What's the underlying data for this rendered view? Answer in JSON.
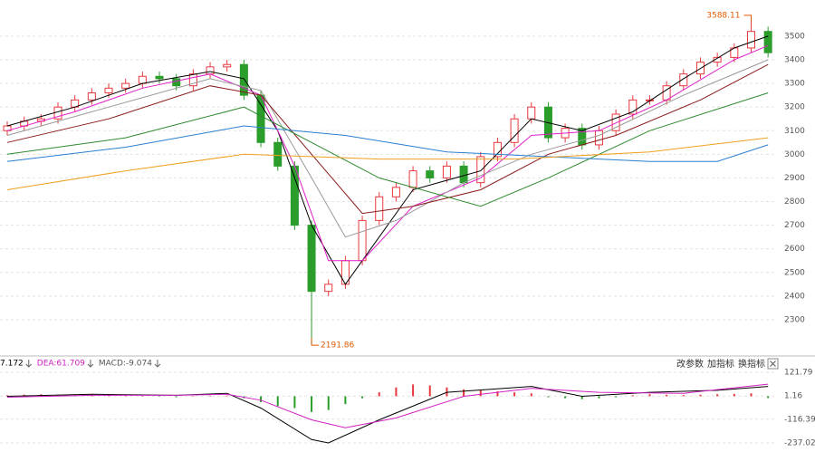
{
  "chart_data": [
    {
      "type": "candlestick",
      "open": [
        3100,
        3120,
        3140,
        3150,
        3200,
        3230,
        3260,
        3280,
        3300,
        3330,
        3320,
        3290,
        3340,
        3370,
        3380,
        3250,
        3050,
        2950,
        2700,
        2420,
        2450,
        2550,
        2720,
        2820,
        2860,
        2930,
        2900,
        2950,
        2880,
        2990,
        3050,
        3150,
        3200,
        3070,
        3110,
        3040,
        3100,
        3170,
        3230,
        3230,
        3290,
        3340,
        3390,
        3410,
        3450,
        3520
      ],
      "high": [
        3140,
        3160,
        3170,
        3220,
        3250,
        3280,
        3300,
        3320,
        3350,
        3350,
        3340,
        3360,
        3390,
        3400,
        3400,
        3270,
        3070,
        2970,
        2720,
        2470,
        2570,
        2740,
        2840,
        2880,
        2950,
        2950,
        2970,
        2970,
        3010,
        3070,
        3170,
        3220,
        3220,
        3130,
        3130,
        3120,
        3190,
        3250,
        3250,
        3310,
        3360,
        3410,
        3430,
        3470,
        3588.11,
        3540
      ],
      "low": [
        3080,
        3100,
        3120,
        3130,
        3180,
        3210,
        3240,
        3260,
        3280,
        3300,
        3270,
        3270,
        3320,
        3350,
        3230,
        3030,
        2930,
        2680,
        2191.86,
        2400,
        2430,
        2530,
        2700,
        2800,
        2840,
        2880,
        2880,
        2860,
        2860,
        2970,
        3030,
        3130,
        3050,
        3050,
        3020,
        3020,
        3080,
        3150,
        3210,
        3210,
        3270,
        3320,
        3370,
        3390,
        3430,
        3410
      ],
      "close": [
        3120,
        3140,
        3150,
        3200,
        3230,
        3260,
        3280,
        3300,
        3330,
        3320,
        3290,
        3340,
        3370,
        3380,
        3250,
        3050,
        2950,
        2700,
        2420,
        2450,
        2550,
        2720,
        2820,
        2860,
        2930,
        2900,
        2950,
        2880,
        2990,
        3050,
        3150,
        3200,
        3070,
        3110,
        3040,
        3100,
        3170,
        3230,
        3230,
        3290,
        3340,
        3390,
        3410,
        3450,
        3520,
        3430
      ],
      "up_color": "#e8383d",
      "down_color": "#2a9d2a",
      "lines": [
        {
          "color": "#000000",
          "x": [
            0,
            4,
            8,
            12,
            14,
            16,
            18,
            20,
            22,
            24,
            28,
            31,
            34,
            37,
            40,
            43,
            45
          ],
          "values": [
            3120,
            3200,
            3300,
            3350,
            3320,
            3100,
            2700,
            2450,
            2650,
            2850,
            2930,
            3150,
            3100,
            3180,
            3320,
            3450,
            3500
          ]
        },
        {
          "color": "#e020c8",
          "x": [
            0,
            4,
            8,
            12,
            15,
            17,
            19,
            21,
            24,
            28,
            31,
            35,
            39,
            43,
            45
          ],
          "values": [
            3100,
            3180,
            3280,
            3340,
            3250,
            2950,
            2550,
            2550,
            2780,
            2900,
            3080,
            3100,
            3230,
            3400,
            3460
          ]
        },
        {
          "color": "#999999",
          "x": [
            0,
            6,
            12,
            15,
            18,
            20,
            23,
            27,
            31,
            35,
            40,
            45
          ],
          "values": [
            3080,
            3200,
            3320,
            3270,
            2900,
            2650,
            2720,
            2880,
            3000,
            3080,
            3250,
            3400
          ]
        },
        {
          "color": "#8b1a1a",
          "x": [
            0,
            6,
            12,
            15,
            18,
            21,
            24,
            28,
            32,
            36,
            41,
            45
          ],
          "values": [
            3050,
            3150,
            3290,
            3250,
            3000,
            2750,
            2780,
            2850,
            3000,
            3080,
            3230,
            3380
          ]
        },
        {
          "color": "#2e8b2e",
          "x": [
            0,
            7,
            14,
            18,
            22,
            28,
            32,
            38,
            45
          ],
          "values": [
            3000,
            3070,
            3200,
            3050,
            2900,
            2780,
            2900,
            3100,
            3260
          ]
        },
        {
          "color": "#2a7fd0",
          "x": [
            0,
            7,
            14,
            20,
            26,
            32,
            38,
            42,
            45
          ],
          "values": [
            2970,
            3030,
            3120,
            3080,
            3010,
            2990,
            2970,
            2970,
            3040
          ]
        },
        {
          "color": "#f0a020",
          "x": [
            0,
            7,
            14,
            22,
            30,
            38,
            45
          ],
          "values": [
            2850,
            2930,
            3000,
            2980,
            2980,
            3010,
            3070
          ]
        }
      ],
      "ylim": [
        2158,
        3653
      ],
      "yticks": [
        2300,
        2400,
        2500,
        2600,
        2700,
        2800,
        2900,
        3000,
        3100,
        3200,
        3300,
        3400,
        3500
      ],
      "grid": true
    },
    {
      "type": "macd",
      "legend_texts": [
        "7.172",
        "DEA:61.709",
        "MACD:-9.074"
      ],
      "buttons": [
        "改参数",
        "加指标",
        "换指标"
      ],
      "histogram": [
        5,
        8,
        10,
        8,
        6,
        5,
        4,
        3,
        2,
        -2,
        -5,
        0,
        3,
        4,
        -10,
        -30,
        -50,
        -60,
        -80,
        -70,
        -40,
        -10,
        20,
        45,
        60,
        55,
        45,
        35,
        30,
        25,
        20,
        15,
        -5,
        -10,
        -15,
        -10,
        -5,
        5,
        10,
        8,
        6,
        8,
        10,
        12,
        15,
        -9.074
      ],
      "lines": [
        {
          "color": "#000000",
          "x": [
            0,
            5,
            10,
            13,
            15,
            18,
            19,
            22,
            26,
            31,
            34,
            38,
            42,
            45
          ],
          "values": [
            0,
            10,
            5,
            15,
            -60,
            -220,
            -237.02,
            -120,
            20,
            50,
            0,
            20,
            30,
            50
          ]
        },
        {
          "color": "#d020c0",
          "x": [
            0,
            5,
            10,
            13,
            15,
            18,
            20,
            23,
            27,
            31,
            35,
            40,
            45
          ],
          "values": [
            -5,
            5,
            5,
            10,
            -20,
            -120,
            -160,
            -110,
            0,
            40,
            20,
            15,
            61.709
          ]
        }
      ],
      "up_color": "#e8383d",
      "down_color": "#2a9d2a",
      "ylim": [
        -274,
        154
      ],
      "yticks": [
        121.79,
        1.16,
        -116.39,
        -237.02
      ],
      "grid": true
    }
  ]
}
